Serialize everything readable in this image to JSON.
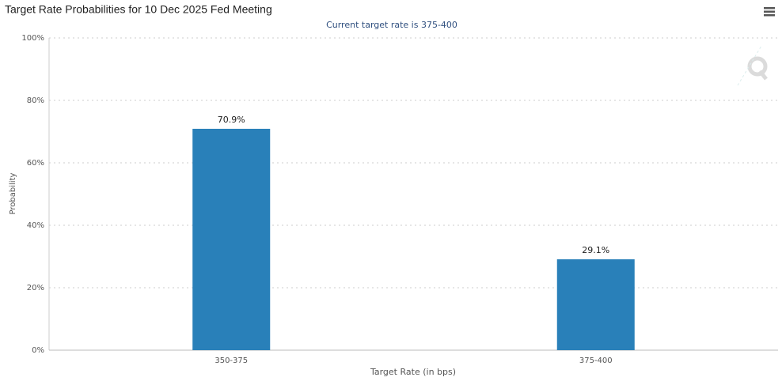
{
  "chart_data": {
    "type": "bar",
    "title": "Target Rate Probabilities for 10 Dec 2025 Fed Meeting",
    "subtitle": "Current target rate is 375-400",
    "x_label": "Target Rate (in bps)",
    "y_label": "Probability",
    "categories": [
      "350-375",
      "375-400"
    ],
    "values": [
      70.9,
      29.1
    ],
    "value_labels": [
      "70.9%",
      "29.1%"
    ],
    "color": "#2980b9",
    "ylim": [
      0,
      100
    ],
    "yticks": [
      {
        "value": 0,
        "label": "0%"
      },
      {
        "value": 20,
        "label": "20%"
      },
      {
        "value": 40,
        "label": "40%"
      },
      {
        "value": 60,
        "label": "60%"
      },
      {
        "value": 80,
        "label": "80%"
      },
      {
        "value": 100,
        "label": "100%"
      }
    ],
    "grid": true
  }
}
